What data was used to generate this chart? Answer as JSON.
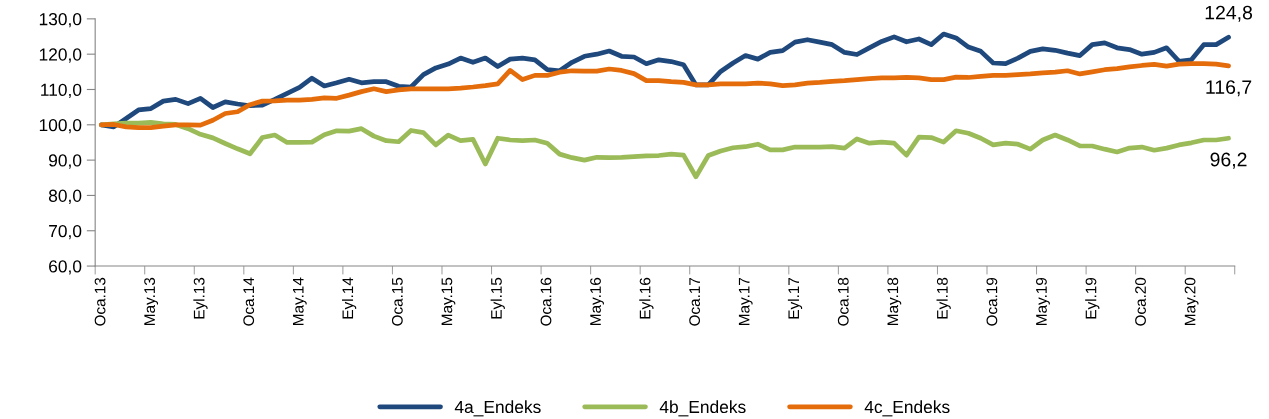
{
  "chart_data": {
    "type": "line",
    "categories": [
      "Oca.13",
      null,
      null,
      null,
      "May.13",
      null,
      null,
      null,
      "Eyl.13",
      null,
      null,
      null,
      "Oca.14",
      null,
      null,
      null,
      "May.14",
      null,
      null,
      null,
      "Eyl.14",
      null,
      null,
      null,
      "Oca.15",
      null,
      null,
      null,
      "May.15",
      null,
      null,
      null,
      "Eyl.15",
      null,
      null,
      null,
      "Oca.16",
      null,
      null,
      null,
      "May.16",
      null,
      null,
      null,
      "Eyl.16",
      null,
      null,
      null,
      "Oca.17",
      null,
      null,
      null,
      "May.17",
      null,
      null,
      null,
      "Eyl.17",
      null,
      null,
      null,
      "Oca.18",
      null,
      null,
      null,
      "May.18",
      null,
      null,
      null,
      "Eyl.18",
      null,
      null,
      null,
      "Oca.19",
      null,
      null,
      null,
      "May.19",
      null,
      null,
      null,
      "Eyl.19",
      null,
      null,
      null,
      "Oca.20",
      null,
      null,
      null,
      "May.20",
      null,
      null,
      null
    ],
    "series": [
      {
        "name": "4a_Endeks",
        "color": "#1f497d",
        "values": [
          100,
          99.4,
          101.8,
          104.2,
          104.6,
          106.7,
          107.2,
          106,
          107.5,
          104.9,
          106.5,
          105.9,
          105.4,
          105.6,
          107.2,
          108.9,
          110.6,
          113.2,
          111,
          111.9,
          112.9,
          111.9,
          112.2,
          112.2,
          110.9,
          110.7,
          114.2,
          116.1,
          117.2,
          118.9,
          117.7,
          118.9,
          116.5,
          118.6,
          118.9,
          118.4,
          115.6,
          115.3,
          117.7,
          119.4,
          120,
          120.9,
          119.4,
          119.2,
          117.3,
          118.4,
          117.9,
          117,
          111.3,
          111.3,
          115.1,
          117.5,
          119.6,
          118.6,
          120.5,
          121,
          123.4,
          124.1,
          123.4,
          122.7,
          120.5,
          119.9,
          121.8,
          123.6,
          124.9,
          123.5,
          124.3,
          122.7,
          125.7,
          124.6,
          122,
          120.8,
          117.5,
          117.3,
          118.9,
          120.8,
          121.5,
          121.1,
          120.3,
          119.6,
          122.7,
          123.2,
          121.8,
          121.3,
          120,
          120.5,
          121.8,
          118,
          118.4,
          122.7,
          122.7,
          124.8
        ]
      },
      {
        "name": "4b_Endeks",
        "color": "#9bbb59",
        "values": [
          100,
          100.3,
          100.5,
          100.5,
          100.7,
          100.3,
          100.1,
          98.9,
          97.3,
          96.3,
          94.7,
          93.2,
          91.8,
          96.4,
          97.1,
          95,
          95,
          95.1,
          97.2,
          98.3,
          98.2,
          98.9,
          96.8,
          95.5,
          95.2,
          98.4,
          97.8,
          94.3,
          97.1,
          95.5,
          95.9,
          88.9,
          96.2,
          95.7,
          95.5,
          95.7,
          94.8,
          91.7,
          90.7,
          90,
          90.8,
          90.7,
          90.8,
          91,
          91.2,
          91.3,
          91.7,
          91.4,
          85.3,
          91.3,
          92.6,
          93.5,
          93.8,
          94.5,
          92.9,
          92.9,
          93.7,
          93.7,
          93.7,
          93.8,
          93.4,
          96,
          94.8,
          95.1,
          94.8,
          91.4,
          96.5,
          96.4,
          95.1,
          98.3,
          97.6,
          96.2,
          94.3,
          94.8,
          94.5,
          93.1,
          95.7,
          97.1,
          95.7,
          94,
          94,
          93.1,
          92.3,
          93.4,
          93.7,
          92.8,
          93.4,
          94.3,
          94.9,
          95.7,
          95.7,
          96.2
        ]
      },
      {
        "name": "4c_Endeks",
        "color": "#e46c0a",
        "values": [
          100,
          100.1,
          99.4,
          99.2,
          99.2,
          99.6,
          100,
          100,
          99.9,
          101.3,
          103.2,
          103.7,
          105.7,
          106.7,
          106.8,
          107,
          107,
          107.2,
          107.6,
          107.5,
          108.4,
          109.4,
          110.2,
          109.4,
          109.9,
          110.2,
          110.2,
          110.2,
          110.2,
          110.4,
          110.7,
          111.1,
          111.6,
          115.4,
          112.8,
          114,
          114,
          114.9,
          115.3,
          115.2,
          115.2,
          115.8,
          115.4,
          114.5,
          112.5,
          112.5,
          112.2,
          112,
          111.3,
          111.3,
          111.6,
          111.6,
          111.6,
          111.8,
          111.6,
          111.1,
          111.3,
          111.8,
          112,
          112.3,
          112.5,
          112.8,
          113.1,
          113.3,
          113.3,
          113.4,
          113.3,
          112.8,
          112.8,
          113.5,
          113.4,
          113.7,
          114,
          114,
          114.2,
          114.4,
          114.7,
          114.9,
          115.3,
          114.4,
          115,
          115.6,
          115.9,
          116.4,
          116.8,
          117.1,
          116.6,
          117.2,
          117.3,
          117.3,
          117.2,
          116.7
        ]
      }
    ],
    "ylim": [
      60,
      130
    ],
    "yticks": [
      {
        "value": 60,
        "label": "60,0"
      },
      {
        "value": 70,
        "label": "70,0"
      },
      {
        "value": 80,
        "label": "80,0"
      },
      {
        "value": 90,
        "label": "90,0"
      },
      {
        "value": 100,
        "label": "100,0"
      },
      {
        "value": 110,
        "label": "110,0"
      },
      {
        "value": 120,
        "label": "120,0"
      },
      {
        "value": 130,
        "label": "130,0"
      }
    ],
    "annotations": [
      {
        "text": "124,8",
        "y": 124.8
      },
      {
        "text": "116,7",
        "y": 116.7
      },
      {
        "text": "96,2",
        "y": 96.2
      }
    ],
    "grid": false,
    "legend": "bottom",
    "marker": "none",
    "line_style": "solid"
  }
}
